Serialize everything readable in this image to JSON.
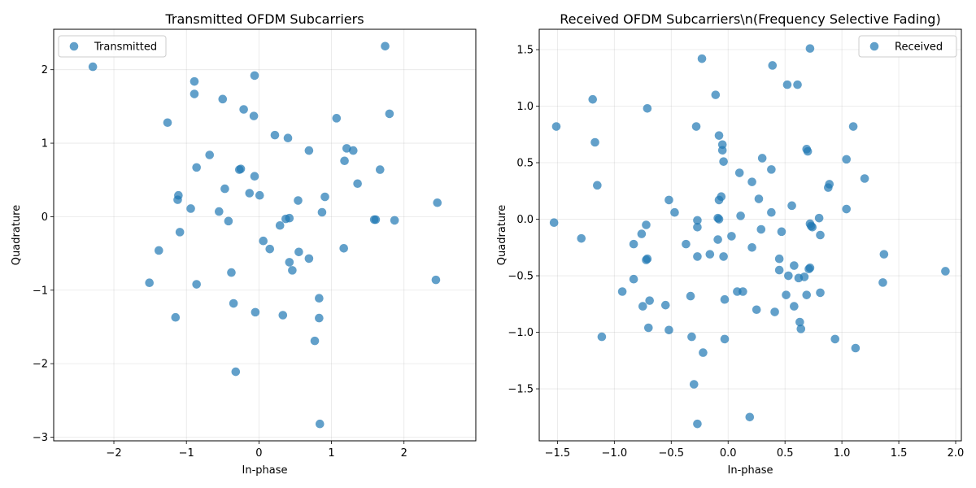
{
  "chart_data": [
    {
      "type": "scatter",
      "title": "Transmitted OFDM Subcarriers",
      "xlabel": "In-phase",
      "ylabel": "Quadrature",
      "xlim": [
        -2.83,
        2.99
      ],
      "ylim": [
        -3.05,
        2.55
      ],
      "xticks": [
        -2,
        -1,
        0,
        1,
        2
      ],
      "yticks": [
        -3,
        -2,
        -1,
        0,
        1,
        2
      ],
      "grid": true,
      "legend_position": "top-left",
      "color": "#1f77b4",
      "series": [
        {
          "name": "Transmitted",
          "points": [
            [
              -2.29,
              2.04
            ],
            [
              -0.89,
              1.84
            ],
            [
              -0.89,
              1.67
            ],
            [
              -1.26,
              1.28
            ],
            [
              -0.5,
              1.6
            ],
            [
              -0.06,
              1.92
            ],
            [
              -0.21,
              1.46
            ],
            [
              -0.07,
              1.37
            ],
            [
              1.74,
              2.32
            ],
            [
              1.8,
              1.4
            ],
            [
              1.07,
              1.34
            ],
            [
              0.22,
              1.11
            ],
            [
              0.4,
              1.07
            ],
            [
              0.69,
              0.9
            ],
            [
              1.21,
              0.93
            ],
            [
              1.3,
              0.9
            ],
            [
              1.18,
              0.76
            ],
            [
              1.67,
              0.64
            ],
            [
              -0.68,
              0.84
            ],
            [
              -0.86,
              0.67
            ],
            [
              -0.27,
              0.64
            ],
            [
              -0.25,
              0.65
            ],
            [
              -0.06,
              0.55
            ],
            [
              -0.47,
              0.38
            ],
            [
              -0.13,
              0.32
            ],
            [
              0.01,
              0.29
            ],
            [
              1.36,
              0.45
            ],
            [
              0.91,
              0.27
            ],
            [
              -1.11,
              0.29
            ],
            [
              -1.12,
              0.23
            ],
            [
              -0.94,
              0.11
            ],
            [
              -0.55,
              0.07
            ],
            [
              0.54,
              0.22
            ],
            [
              0.87,
              0.06
            ],
            [
              2.46,
              0.19
            ],
            [
              -1.09,
              -0.21
            ],
            [
              -0.42,
              -0.06
            ],
            [
              0.29,
              -0.12
            ],
            [
              0.37,
              -0.03
            ],
            [
              0.42,
              -0.02
            ],
            [
              1.59,
              -0.04
            ],
            [
              1.61,
              -0.04
            ],
            [
              1.87,
              -0.05
            ],
            [
              -1.38,
              -0.46
            ],
            [
              0.06,
              -0.33
            ],
            [
              0.15,
              -0.44
            ],
            [
              0.55,
              -0.48
            ],
            [
              1.17,
              -0.43
            ],
            [
              0.42,
              -0.62
            ],
            [
              0.46,
              -0.73
            ],
            [
              0.69,
              -0.57
            ],
            [
              -0.38,
              -0.76
            ],
            [
              -1.51,
              -0.9
            ],
            [
              -0.86,
              -0.92
            ],
            [
              2.44,
              -0.86
            ],
            [
              -0.35,
              -1.18
            ],
            [
              -0.05,
              -1.3
            ],
            [
              0.33,
              -1.34
            ],
            [
              0.83,
              -1.11
            ],
            [
              -1.15,
              -1.37
            ],
            [
              0.83,
              -1.38
            ],
            [
              0.77,
              -1.69
            ],
            [
              -0.32,
              -2.11
            ],
            [
              0.84,
              -2.82
            ]
          ]
        }
      ]
    },
    {
      "type": "scatter",
      "title": "Received OFDM Subcarriers\\n(Frequency Selective Fading)",
      "xlabel": "In-phase",
      "ylabel": "Quadrature",
      "xlim": [
        -1.66,
        2.05
      ],
      "ylim": [
        -1.96,
        1.68
      ],
      "xticks": [
        -1.5,
        -1.0,
        -0.5,
        0.0,
        0.5,
        1.0,
        1.5,
        2.0
      ],
      "yticks": [
        -1.5,
        -1.0,
        -0.5,
        0.0,
        0.5,
        1.0,
        1.5
      ],
      "grid": true,
      "legend_position": "top-right",
      "color": "#1f77b4",
      "series": [
        {
          "name": "Received",
          "points": [
            [
              -1.51,
              0.82
            ],
            [
              -1.53,
              -0.03
            ],
            [
              -1.29,
              -0.17
            ],
            [
              -1.19,
              1.06
            ],
            [
              -1.17,
              0.68
            ],
            [
              -1.15,
              0.3
            ],
            [
              -0.71,
              0.98
            ],
            [
              -0.23,
              1.42
            ],
            [
              -0.11,
              1.1
            ],
            [
              0.39,
              1.36
            ],
            [
              0.52,
              1.19
            ],
            [
              0.61,
              1.19
            ],
            [
              0.72,
              1.51
            ],
            [
              -0.28,
              0.82
            ],
            [
              -0.08,
              0.74
            ],
            [
              -0.05,
              0.66
            ],
            [
              -0.05,
              0.61
            ],
            [
              -0.04,
              0.51
            ],
            [
              0.3,
              0.54
            ],
            [
              0.69,
              0.62
            ],
            [
              0.7,
              0.6
            ],
            [
              1.04,
              0.53
            ],
            [
              1.1,
              0.82
            ],
            [
              1.2,
              0.36
            ],
            [
              0.1,
              0.41
            ],
            [
              0.21,
              0.33
            ],
            [
              0.38,
              0.44
            ],
            [
              0.89,
              0.31
            ],
            [
              0.88,
              0.28
            ],
            [
              -0.52,
              0.17
            ],
            [
              -0.06,
              0.2
            ],
            [
              -0.08,
              0.17
            ],
            [
              0.27,
              0.18
            ],
            [
              0.56,
              0.12
            ],
            [
              1.04,
              0.09
            ],
            [
              -0.47,
              0.06
            ],
            [
              -0.09,
              0.01
            ],
            [
              -0.08,
              0.0
            ],
            [
              0.11,
              0.03
            ],
            [
              0.38,
              0.06
            ],
            [
              0.8,
              0.01
            ],
            [
              0.72,
              -0.04
            ],
            [
              0.73,
              -0.06
            ],
            [
              0.74,
              -0.07
            ],
            [
              -0.72,
              -0.05
            ],
            [
              -0.76,
              -0.13
            ],
            [
              -0.27,
              -0.01
            ],
            [
              -0.27,
              -0.07
            ],
            [
              0.29,
              -0.09
            ],
            [
              0.47,
              -0.11
            ],
            [
              -0.83,
              -0.22
            ],
            [
              -0.37,
              -0.22
            ],
            [
              -0.09,
              -0.18
            ],
            [
              0.03,
              -0.15
            ],
            [
              0.21,
              -0.25
            ],
            [
              0.81,
              -0.14
            ],
            [
              -0.72,
              -0.36
            ],
            [
              -0.71,
              -0.35
            ],
            [
              -0.16,
              -0.31
            ],
            [
              -0.27,
              -0.33
            ],
            [
              -0.04,
              -0.33
            ],
            [
              0.45,
              -0.35
            ],
            [
              0.58,
              -0.41
            ],
            [
              0.45,
              -0.45
            ],
            [
              0.53,
              -0.5
            ],
            [
              0.62,
              -0.52
            ],
            [
              0.67,
              -0.51
            ],
            [
              0.71,
              -0.44
            ],
            [
              0.72,
              -0.43
            ],
            [
              1.37,
              -0.31
            ],
            [
              1.36,
              -0.56
            ],
            [
              1.91,
              -0.46
            ],
            [
              -0.83,
              -0.53
            ],
            [
              -0.93,
              -0.64
            ],
            [
              -0.69,
              -0.72
            ],
            [
              -0.75,
              -0.77
            ],
            [
              -0.55,
              -0.76
            ],
            [
              -0.33,
              -0.68
            ],
            [
              -0.03,
              -0.71
            ],
            [
              0.08,
              -0.64
            ],
            [
              0.13,
              -0.64
            ],
            [
              0.51,
              -0.67
            ],
            [
              0.69,
              -0.67
            ],
            [
              0.81,
              -0.65
            ],
            [
              0.25,
              -0.8
            ],
            [
              0.41,
              -0.82
            ],
            [
              0.58,
              -0.77
            ],
            [
              -0.7,
              -0.96
            ],
            [
              -0.52,
              -0.98
            ],
            [
              0.63,
              -0.91
            ],
            [
              0.64,
              -0.97
            ],
            [
              -1.11,
              -1.04
            ],
            [
              -0.32,
              -1.04
            ],
            [
              -0.03,
              -1.06
            ],
            [
              0.94,
              -1.06
            ],
            [
              1.12,
              -1.14
            ],
            [
              -0.22,
              -1.18
            ],
            [
              -0.3,
              -1.46
            ],
            [
              0.19,
              -1.75
            ],
            [
              -0.27,
              -1.81
            ]
          ]
        }
      ]
    }
  ]
}
